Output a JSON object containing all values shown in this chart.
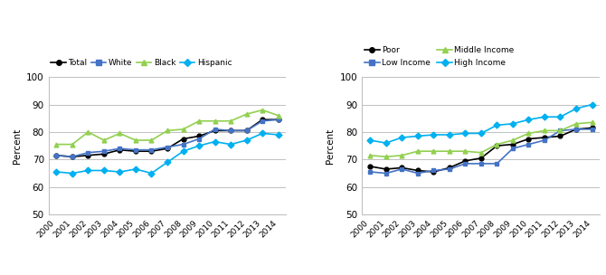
{
  "years": [
    2000,
    2001,
    2002,
    2003,
    2004,
    2005,
    2006,
    2007,
    2008,
    2009,
    2010,
    2011,
    2012,
    2013,
    2014
  ],
  "chart1": {
    "Total": [
      71.5,
      71.0,
      71.5,
      72.0,
      73.5,
      73.0,
      73.0,
      74.0,
      77.5,
      78.5,
      80.5,
      80.5,
      80.5,
      84.5,
      84.5
    ],
    "White": [
      71.5,
      71.0,
      72.5,
      73.0,
      74.0,
      73.5,
      73.5,
      74.5,
      75.5,
      77.5,
      81.0,
      80.5,
      80.5,
      84.0,
      84.5
    ],
    "Black": [
      75.5,
      75.5,
      80.0,
      77.0,
      79.5,
      77.0,
      77.0,
      80.5,
      81.0,
      84.0,
      84.0,
      84.0,
      86.5,
      88.0,
      86.0
    ],
    "Hispanic": [
      65.5,
      65.0,
      66.0,
      66.0,
      65.5,
      66.5,
      65.0,
      69.0,
      73.0,
      75.0,
      76.5,
      75.5,
      77.0,
      79.5,
      79.0
    ]
  },
  "chart2": {
    "Poor": [
      67.5,
      66.5,
      67.0,
      66.0,
      65.5,
      67.0,
      69.5,
      70.5,
      75.0,
      75.5,
      77.5,
      78.0,
      78.5,
      81.0,
      81.5
    ],
    "Low Income": [
      65.5,
      65.0,
      66.5,
      65.0,
      66.0,
      66.5,
      68.5,
      68.5,
      68.5,
      74.0,
      75.5,
      77.0,
      80.5,
      81.0,
      81.0
    ],
    "Middle Income": [
      71.5,
      71.0,
      71.5,
      73.0,
      73.0,
      73.0,
      73.0,
      72.5,
      75.5,
      77.0,
      79.5,
      80.5,
      80.5,
      83.0,
      83.5
    ],
    "High Income": [
      77.0,
      76.0,
      78.0,
      78.5,
      79.0,
      79.0,
      79.5,
      79.5,
      82.5,
      83.0,
      84.5,
      85.5,
      85.5,
      88.5,
      90.0
    ]
  },
  "colors": {
    "Total": "#000000",
    "White": "#4472c4",
    "Black": "#92d050",
    "Hispanic": "#00b0f0",
    "Poor": "#000000",
    "Low Income": "#4472c4",
    "Middle Income": "#92d050",
    "High Income": "#00b0f0"
  },
  "markers": {
    "Total": "o",
    "White": "s",
    "Black": "^",
    "Hispanic": "D",
    "Poor": "o",
    "Low Income": "s",
    "Middle Income": "^",
    "High Income": "D"
  },
  "ylim": [
    50,
    100
  ],
  "yticks": [
    50,
    60,
    70,
    80,
    90,
    100
  ],
  "ylabel": "Percent",
  "background_color": "#ffffff",
  "grid_color": "#c0c0c0",
  "chart1_series": [
    "Total",
    "White",
    "Black",
    "Hispanic"
  ],
  "chart2_series": [
    "Poor",
    "Low Income",
    "Middle Income",
    "High Income"
  ]
}
